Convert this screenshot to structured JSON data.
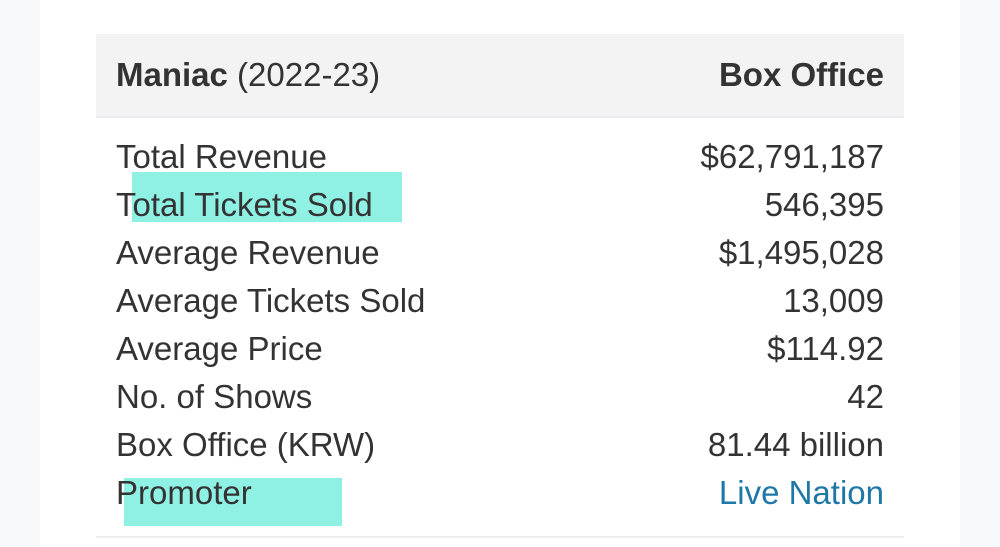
{
  "header": {
    "show_name": "Maniac",
    "years": "(2022-23)",
    "column": "Box Office"
  },
  "rows": [
    {
      "label": "Total Revenue",
      "value": "$62,791,187"
    },
    {
      "label": "Total Tickets Sold",
      "value": "546,395"
    },
    {
      "label": "Average Revenue",
      "value": "$1,495,028"
    },
    {
      "label": "Average Tickets Sold",
      "value": "13,009"
    },
    {
      "label": "Average Price",
      "value": "$114.92"
    },
    {
      "label": "No. of Shows",
      "value": "42"
    },
    {
      "label": "Box Office (KRW)",
      "value": "81.44 billion"
    },
    {
      "label": "Promoter",
      "value": "Live Nation"
    }
  ],
  "colors": {
    "highlight": "#8ff0e4",
    "link": "#1f77a8",
    "header_bg": "#f3f3f3"
  }
}
